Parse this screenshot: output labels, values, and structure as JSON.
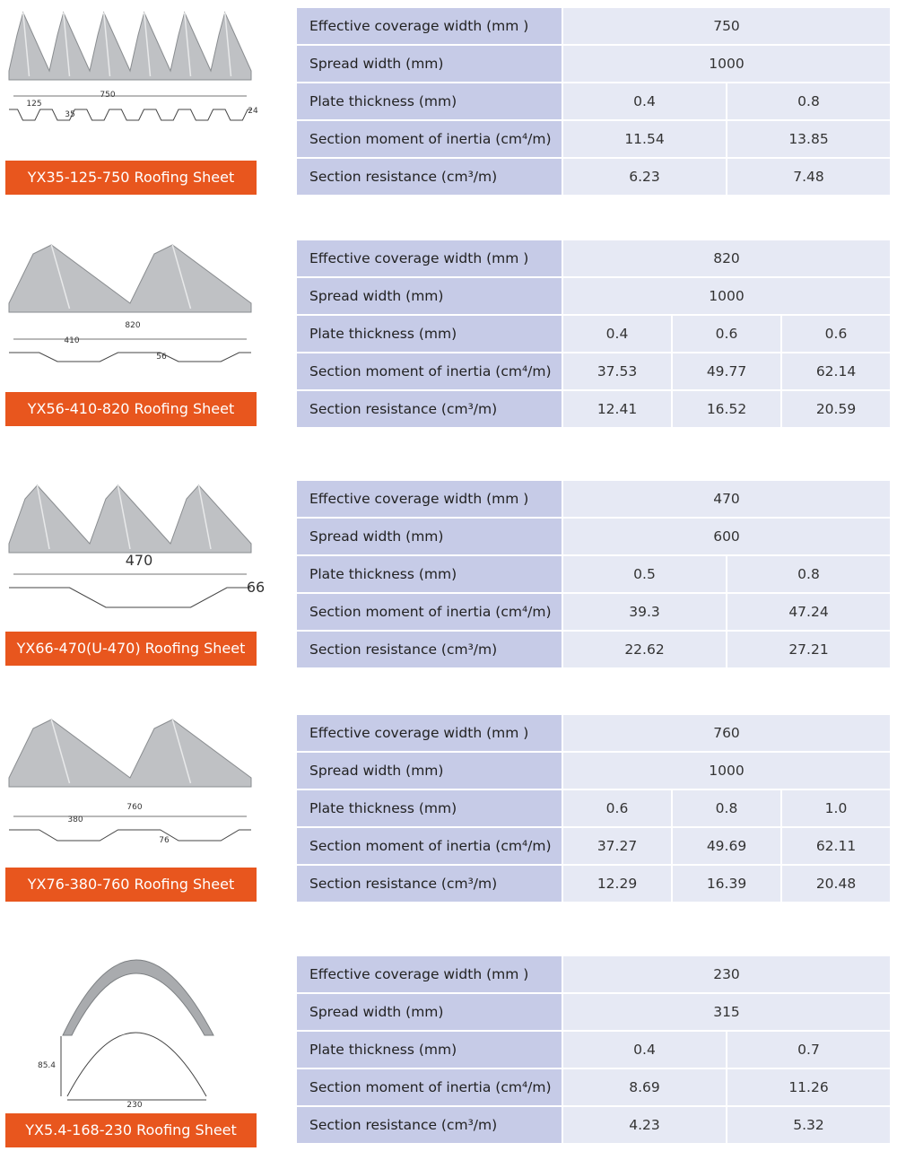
{
  "products": [
    {
      "label": "YX35-125-750 Roofing Sheet",
      "dimensions": [
        "750",
        "125",
        "35",
        "24"
      ],
      "table": {
        "rows": [
          {
            "label": "Effective coverage width (mm )",
            "values": [
              "750"
            ]
          },
          {
            "label": "Spread width (mm)",
            "values": [
              "1000"
            ]
          },
          {
            "label": "Plate thickness (mm)",
            "values": [
              "0.4",
              "0.8"
            ]
          },
          {
            "label": "Section moment of inertia (cm⁴/m)",
            "values": [
              "11.54",
              "13.85"
            ]
          },
          {
            "label": "Section resistance (cm³/m)",
            "values": [
              "6.23",
              "7.48"
            ]
          }
        ]
      }
    },
    {
      "label": "YX56-410-820 Roofing Sheet",
      "dimensions": [
        "820",
        "410",
        "56"
      ],
      "table": {
        "rows": [
          {
            "label": "Effective coverage width (mm )",
            "values": [
              "820"
            ]
          },
          {
            "label": "Spread width (mm)",
            "values": [
              "1000"
            ]
          },
          {
            "label": "Plate thickness (mm)",
            "values": [
              "0.4",
              "0.6",
              "0.6"
            ]
          },
          {
            "label": "Section moment of inertia (cm⁴/m)",
            "values": [
              "37.53",
              "49.77",
              "62.14"
            ]
          },
          {
            "label": "Section resistance (cm³/m)",
            "values": [
              "12.41",
              "16.52",
              "20.59"
            ]
          }
        ]
      }
    },
    {
      "label": "YX66-470(U-470) Roofing Sheet",
      "dimensions": [
        "470",
        "66"
      ],
      "table": {
        "rows": [
          {
            "label": "Effective coverage width (mm )",
            "values": [
              "470"
            ]
          },
          {
            "label": "Spread width (mm)",
            "values": [
              "600"
            ]
          },
          {
            "label": "Plate thickness (mm)",
            "values": [
              "0.5",
              "0.8"
            ]
          },
          {
            "label": "Section moment of inertia (cm⁴/m)",
            "values": [
              "39.3",
              "47.24"
            ]
          },
          {
            "label": "Section resistance (cm³/m)",
            "values": [
              "22.62",
              "27.21"
            ]
          }
        ]
      }
    },
    {
      "label": "YX76-380-760 Roofing Sheet",
      "dimensions": [
        "760",
        "380",
        "76"
      ],
      "table": {
        "rows": [
          {
            "label": "Effective coverage width (mm )",
            "values": [
              "760"
            ]
          },
          {
            "label": "Spread width (mm)",
            "values": [
              "1000"
            ]
          },
          {
            "label": "Plate thickness (mm)",
            "values": [
              "0.6",
              "0.8",
              "1.0"
            ]
          },
          {
            "label": "Section moment of inertia (cm⁴/m)",
            "values": [
              "37.27",
              "49.69",
              "62.11"
            ]
          },
          {
            "label": "Section resistance (cm³/m)",
            "values": [
              "12.29",
              "16.39",
              "20.48"
            ]
          }
        ]
      }
    },
    {
      "label": "YX5.4-168-230 Roofing Sheet",
      "dimensions": [
        "85.4",
        "230"
      ],
      "table": {
        "rows": [
          {
            "label": "Effective coverage width (mm )",
            "values": [
              "230"
            ]
          },
          {
            "label": "Spread width (mm)",
            "values": [
              "315"
            ]
          },
          {
            "label": "Plate thickness (mm)",
            "values": [
              "0.4",
              "0.7"
            ]
          },
          {
            "label": "Section moment of inertia (cm⁴/m)",
            "values": [
              "8.69",
              "11.26"
            ]
          },
          {
            "label": "Section resistance (cm³/m)",
            "values": [
              "4.23",
              "5.32"
            ]
          }
        ]
      }
    }
  ]
}
